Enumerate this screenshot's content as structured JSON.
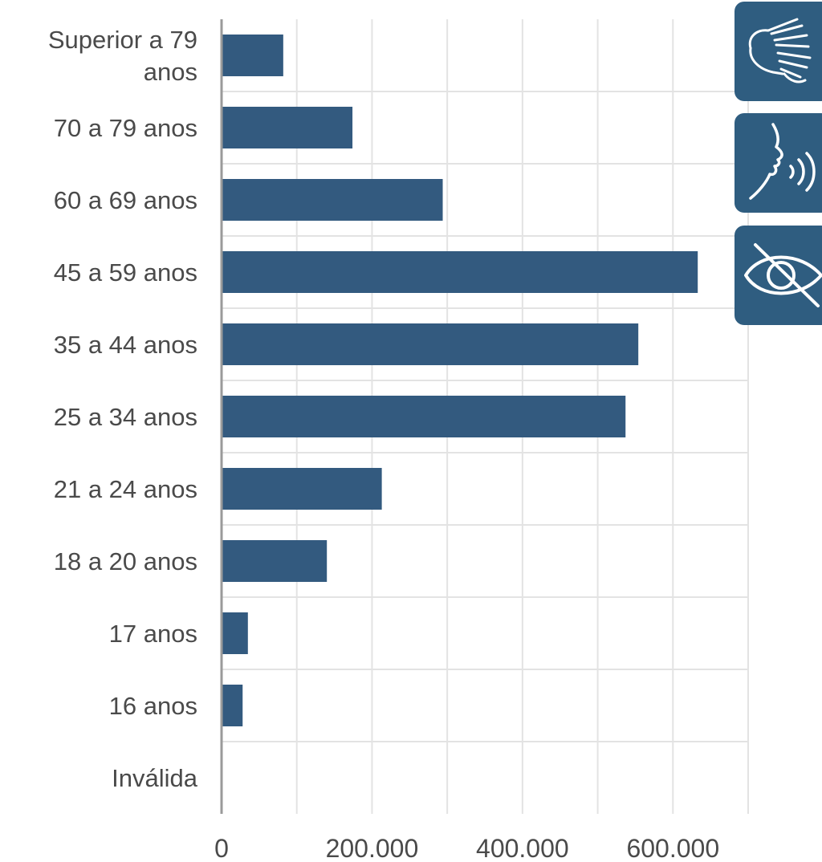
{
  "chart_data": {
    "type": "bar",
    "orientation": "horizontal",
    "categories": [
      "Superior a 79 anos",
      "70 a 79 anos",
      "60 a 69 anos",
      "45 a 59 anos",
      "35 a 44 anos",
      "25 a 34 anos",
      "21 a 24 anos",
      "18 a 20 anos",
      "17 anos",
      "16 anos",
      "Inválida"
    ],
    "category_lines": [
      [
        "Superior a 79",
        "anos"
      ],
      [
        "70 a 79 anos"
      ],
      [
        "60 a 69 anos"
      ],
      [
        "45 a 59 anos"
      ],
      [
        "35 a 44 anos"
      ],
      [
        "25 a 34 anos"
      ],
      [
        "21 a 24 anos"
      ],
      [
        "18 a 20 anos"
      ],
      [
        "17 anos"
      ],
      [
        "16 anos"
      ],
      [
        "Inválida"
      ]
    ],
    "values": [
      82000,
      174000,
      294000,
      633000,
      554000,
      537000,
      213000,
      140000,
      35000,
      28000,
      0
    ],
    "xticks": [
      0,
      100000,
      200000,
      300000,
      400000,
      500000,
      600000,
      700000
    ],
    "xtick_labels": [
      "0",
      "",
      "200.000",
      "",
      "400.000",
      "",
      "600.000",
      ""
    ],
    "xlim": [
      0,
      700000
    ],
    "grid": true,
    "bar_color": "#335a7f",
    "title": "",
    "xlabel": "",
    "ylabel": ""
  },
  "accessibility_buttons": [
    {
      "icon": "sign-language-icon"
    },
    {
      "icon": "audio-description-icon"
    },
    {
      "icon": "low-vision-icon"
    }
  ],
  "colors": {
    "button_bg": "#2f5d80",
    "icon": "#ffffff",
    "grid": "#e3e3e3",
    "axis": "#9a9a9a"
  }
}
